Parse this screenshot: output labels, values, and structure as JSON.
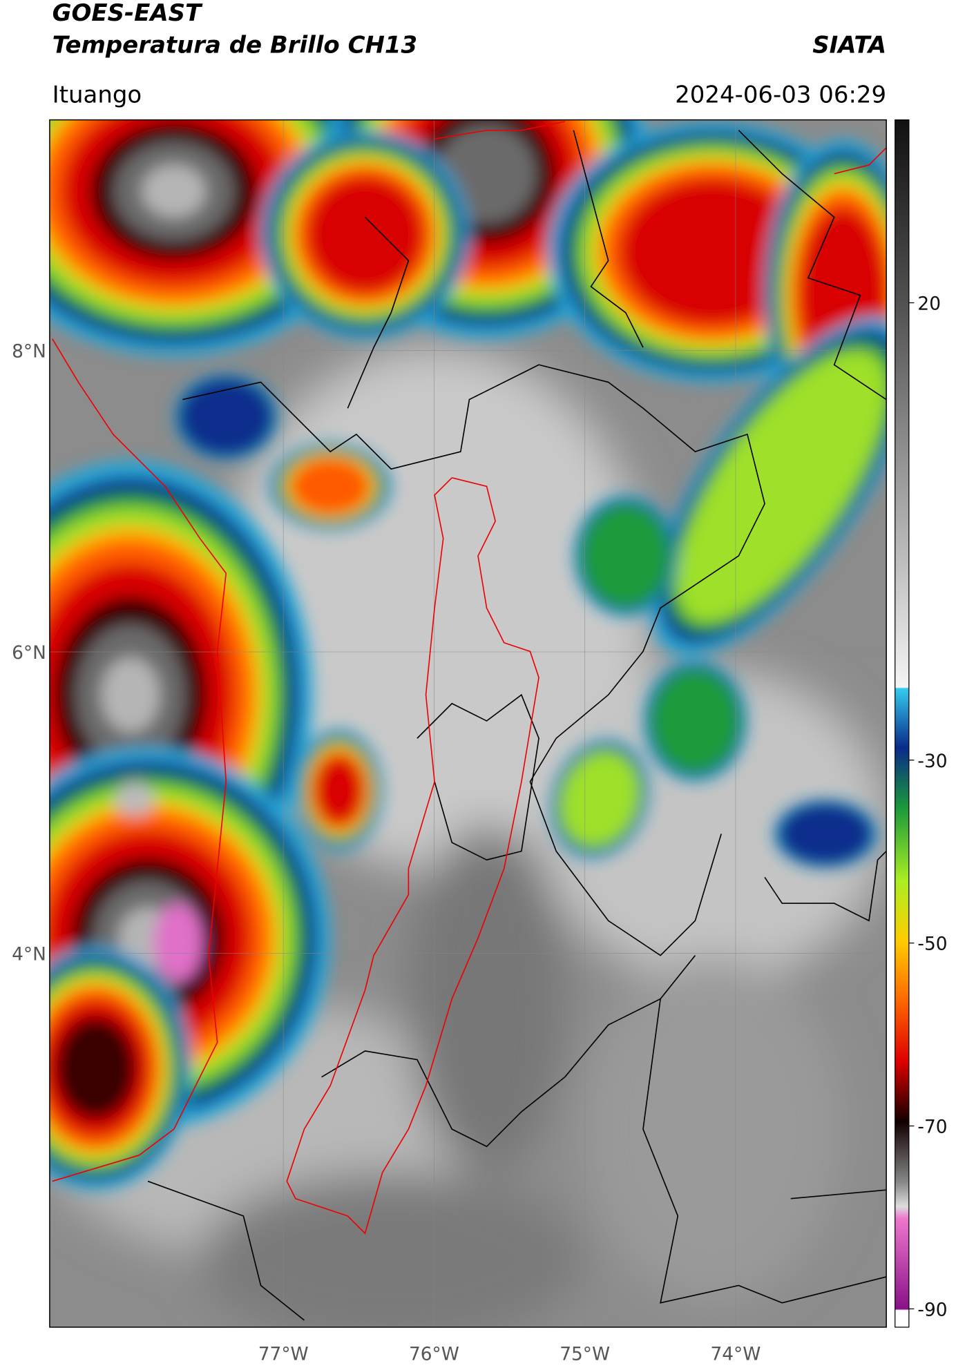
{
  "header": {
    "title": "GOES-EAST",
    "subtitle": "Temperatura de Brillo CH13",
    "source": "SIATA",
    "region": "Ituango",
    "datetime": "2024-06-03 06:29"
  },
  "map": {
    "xlim": [
      -78.55,
      -73.0
    ],
    "ylim": [
      1.52,
      9.53
    ],
    "xticks": [
      {
        "value": -77,
        "label": "77°W"
      },
      {
        "value": -76,
        "label": "76°W"
      },
      {
        "value": -75,
        "label": "75°W"
      },
      {
        "value": -74,
        "label": "74°W"
      }
    ],
    "yticks": [
      {
        "value": 8,
        "label": "8°N"
      },
      {
        "value": 6,
        "label": "6°N"
      },
      {
        "value": 4,
        "label": "4°N"
      }
    ],
    "grid": true
  },
  "colorbar": {
    "lim": [
      -92,
      40
    ],
    "ticks": [
      20,
      -30,
      -50,
      -70,
      -90
    ]
  }
}
